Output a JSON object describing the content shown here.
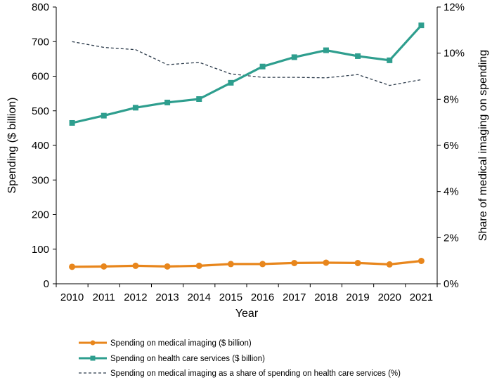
{
  "chart_data": {
    "type": "line",
    "title": "",
    "xlabel": "Year",
    "ylabel": "Spending ($ billion)",
    "y2label": "Share of medical imaging on spending",
    "ylim": [
      0,
      800
    ],
    "yticks": [
      0,
      100,
      200,
      300,
      400,
      500,
      600,
      700,
      800
    ],
    "y2lim": [
      0,
      12
    ],
    "y2ticks": [
      "0%",
      "2%",
      "4%",
      "6%",
      "8%",
      "10%",
      "12%"
    ],
    "categories": [
      "2010",
      "2011",
      "2012",
      "2013",
      "2014",
      "2015",
      "2016",
      "2017",
      "2018",
      "2019",
      "2020",
      "2021"
    ],
    "grid": false,
    "legend_position": "bottom",
    "series": [
      {
        "name": "Spending on medical imaging ($ billion)",
        "axis": "left",
        "color": "#E8861C",
        "marker": "circle",
        "values": [
          49,
          50,
          52,
          50,
          52,
          57,
          57,
          60,
          61,
          60,
          56,
          66
        ]
      },
      {
        "name": "Spending on health care services ($ billion)",
        "axis": "left",
        "color": "#2E9E8E",
        "marker": "square",
        "values": [
          465,
          486,
          509,
          524,
          534,
          581,
          628,
          655,
          675,
          658,
          646,
          747
        ]
      },
      {
        "name": "Spending on medical imaging as a share of spending on health care services (%)",
        "axis": "right",
        "color": "#2B3A4A",
        "marker": "none",
        "dashed": true,
        "values": [
          10.5,
          10.25,
          10.15,
          9.5,
          9.6,
          9.1,
          8.95,
          8.95,
          8.93,
          9.07,
          8.6,
          8.85
        ]
      }
    ]
  }
}
